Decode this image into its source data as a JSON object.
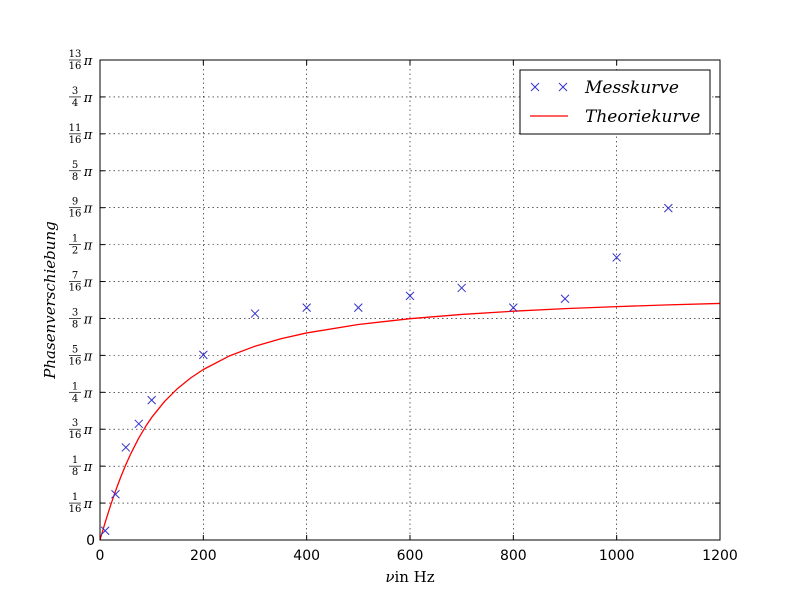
{
  "chart_data": {
    "type": "scatter",
    "title": "",
    "xlabel_symbol": "ν",
    "xlabel_text": "in Hz",
    "ylabel": "Phasenverschiebung",
    "xlim": [
      0,
      1200
    ],
    "ylim": [
      0,
      0.8125
    ],
    "grid": true,
    "legend_position": "top-right",
    "x_ticks": [
      {
        "value": 0,
        "label": "0"
      },
      {
        "value": 200,
        "label": "200"
      },
      {
        "value": 400,
        "label": "400"
      },
      {
        "value": 600,
        "label": "600"
      },
      {
        "value": 800,
        "label": "800"
      },
      {
        "value": 1000,
        "label": "1000"
      },
      {
        "value": 1200,
        "label": "1200"
      }
    ],
    "y_ticks": [
      {
        "value": 0,
        "label": "0"
      },
      {
        "value": 0.0625,
        "num": "1",
        "den": "16",
        "sym": "π"
      },
      {
        "value": 0.125,
        "num": "1",
        "den": "8",
        "sym": "π"
      },
      {
        "value": 0.1875,
        "num": "3",
        "den": "16",
        "sym": "π"
      },
      {
        "value": 0.25,
        "num": "1",
        "den": "4",
        "sym": "π"
      },
      {
        "value": 0.3125,
        "num": "5",
        "den": "16",
        "sym": "π"
      },
      {
        "value": 0.375,
        "num": "3",
        "den": "8",
        "sym": "π"
      },
      {
        "value": 0.4375,
        "num": "7",
        "den": "16",
        "sym": "π"
      },
      {
        "value": 0.5,
        "num": "1",
        "den": "2",
        "sym": "π"
      },
      {
        "value": 0.5625,
        "num": "9",
        "den": "16",
        "sym": "π"
      },
      {
        "value": 0.625,
        "num": "5",
        "den": "8",
        "sym": "π"
      },
      {
        "value": 0.6875,
        "num": "11",
        "den": "16",
        "sym": "π"
      },
      {
        "value": 0.75,
        "num": "3",
        "den": "4",
        "sym": "π"
      },
      {
        "value": 0.8125,
        "num": "13",
        "den": "16",
        "sym": "π"
      }
    ],
    "series": [
      {
        "name": "Messkurve",
        "kind": "scatter",
        "marker": "x",
        "color": "#3333cc",
        "x": [
          10,
          30,
          50,
          75,
          100,
          200,
          300,
          400,
          500,
          600,
          700,
          800,
          900,
          1000,
          1100
        ],
        "y": [
          0.0156,
          0.0775,
          0.1567,
          0.1967,
          0.2367,
          0.3133,
          0.3833,
          0.3933,
          0.3933,
          0.4133,
          0.4267,
          0.3933,
          0.4083,
          0.4783,
          0.5617
        ]
      },
      {
        "name": "Theoriekurve",
        "kind": "line",
        "color": "#ff0000",
        "x": [
          0,
          10,
          20,
          30,
          40,
          50,
          60,
          75,
          90,
          100,
          125,
          150,
          175,
          200,
          250,
          300,
          350,
          400,
          500,
          600,
          700,
          800,
          900,
          1000,
          1100,
          1200
        ],
        "y": [
          0.0,
          0.0297,
          0.0574,
          0.0829,
          0.1062,
          0.1275,
          0.1468,
          0.1726,
          0.1945,
          0.2074,
          0.2345,
          0.2563,
          0.274,
          0.2886,
          0.3114,
          0.328,
          0.3406,
          0.3505,
          0.3648,
          0.3746,
          0.3818,
          0.3873,
          0.3916,
          0.3951,
          0.398,
          0.4004
        ]
      }
    ]
  }
}
